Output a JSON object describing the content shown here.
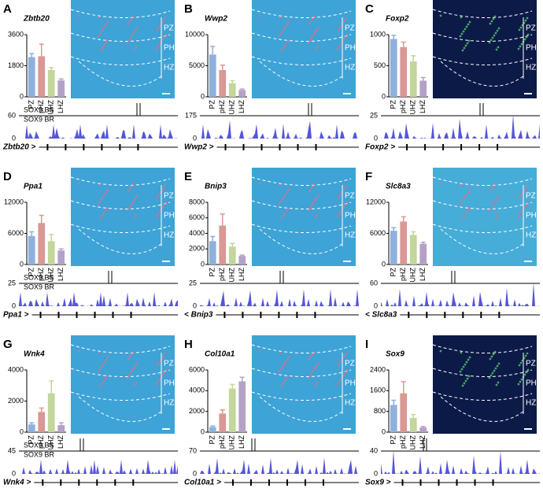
{
  "chart_data": [
    {
      "type": "bar",
      "letter": "A",
      "title": "Zbtb20",
      "categories": [
        "PZ",
        "pHZ",
        "UHZ",
        "LHZ"
      ],
      "values": [
        2300,
        2350,
        1550,
        950
      ],
      "error": [
        200,
        700,
        150,
        80
      ],
      "colors": [
        "#8fb0dc",
        "#d99894",
        "#c3d69b",
        "#b3a2c7"
      ],
      "ylim": [
        0,
        3600
      ],
      "yticks": [
        0,
        1800,
        3600
      ],
      "zones": [
        "PZ",
        "PHZ",
        "HZ"
      ],
      "image_color": "#3ea3d6",
      "bs_label": "SOX9 BS",
      "br_label": "SOX9 BR",
      "track_ylim": [
        0,
        60
      ],
      "gene_label": "Zbtb20 >"
    },
    {
      "type": "bar",
      "letter": "B",
      "title": "Wwp2",
      "categories": [
        "PZ",
        "pHZ",
        "UHZ",
        "LHZ"
      ],
      "values": [
        6800,
        4300,
        2200,
        1100
      ],
      "error": [
        1300,
        800,
        400,
        150
      ],
      "colors": [
        "#8fb0dc",
        "#d99894",
        "#c3d69b",
        "#b3a2c7"
      ],
      "ylim": [
        0,
        10000
      ],
      "yticks": [
        0,
        5000,
        10000
      ],
      "zones": [
        "PZ",
        "PHZ",
        "HZ"
      ],
      "image_color": "#3ea3d6",
      "track_ylim": [
        0,
        175
      ],
      "gene_label": "Wwp2 >"
    },
    {
      "type": "bar",
      "letter": "C",
      "title": "Foxp2",
      "categories": [
        "PZ",
        "pHZ",
        "UHZ",
        "LHZ"
      ],
      "values": [
        930,
        800,
        570,
        260
      ],
      "error": [
        60,
        80,
        90,
        50
      ],
      "colors": [
        "#8fb0dc",
        "#d99894",
        "#c3d69b",
        "#b3a2c7"
      ],
      "ylim": [
        0,
        1000
      ],
      "yticks": [
        0,
        500,
        1000
      ],
      "zones": [
        "PZ",
        "PHZ",
        "HZ"
      ],
      "image_color": "#0c1a48",
      "track_ylim": [
        0,
        25
      ],
      "gene_label": "Foxp2 >"
    },
    {
      "type": "bar",
      "letter": "D",
      "title": "Ppa1",
      "categories": [
        "PZ",
        "pHZ",
        "UHZ",
        "LHZ"
      ],
      "values": [
        5500,
        8000,
        4500,
        2700
      ],
      "error": [
        800,
        1500,
        1300,
        300
      ],
      "colors": [
        "#8fb0dc",
        "#d99894",
        "#c3d69b",
        "#b3a2c7"
      ],
      "ylim": [
        0,
        12000
      ],
      "yticks": [
        0,
        6000,
        12000
      ],
      "zones": [
        "PZ",
        "PHZ",
        "HZ"
      ],
      "image_color": "#3ea3d6",
      "bs_label": "SOX9 BS",
      "br_label": "SOX9 BR",
      "track_ylim": [
        0,
        25
      ],
      "gene_label": "Ppa1 >"
    },
    {
      "type": "bar",
      "letter": "E",
      "title": "Bnip3",
      "categories": [
        "PZ",
        "pHZ",
        "UHZ",
        "LHZ"
      ],
      "values": [
        3000,
        5000,
        2300,
        1100
      ],
      "error": [
        600,
        1500,
        400,
        100
      ],
      "colors": [
        "#8fb0dc",
        "#d99894",
        "#c3d69b",
        "#b3a2c7"
      ],
      "ylim": [
        0,
        8000
      ],
      "yticks": [
        0,
        2000,
        4000,
        6000,
        8000
      ],
      "zones": [
        "PZ",
        "PHZ",
        "HZ"
      ],
      "image_color": "#3ea3d6",
      "track_ylim": [
        0,
        25
      ],
      "gene_label": "< Bnip3"
    },
    {
      "type": "bar",
      "letter": "F",
      "title": "Slc8a3",
      "categories": [
        "PZ",
        "pHZ",
        "UHZ",
        "LHZ"
      ],
      "values": [
        6500,
        8300,
        5700,
        4000
      ],
      "error": [
        600,
        900,
        600,
        300
      ],
      "colors": [
        "#8fb0dc",
        "#d99894",
        "#c3d69b",
        "#b3a2c7"
      ],
      "ylim": [
        0,
        12000
      ],
      "yticks": [
        0,
        6000,
        12000
      ],
      "zones": [
        "PZ",
        "PHZ",
        "HZ"
      ],
      "image_color": "#46acd8",
      "track_ylim": [
        0,
        60
      ],
      "gene_label": "< Slc8a3"
    },
    {
      "type": "bar",
      "letter": "G",
      "title": "Wnk4",
      "categories": [
        "PZ",
        "pHZ",
        "UHZ",
        "LHZ"
      ],
      "values": [
        500,
        1300,
        2500,
        450
      ],
      "error": [
        100,
        250,
        800,
        150
      ],
      "colors": [
        "#8fb0dc",
        "#d99894",
        "#c3d69b",
        "#b3a2c7"
      ],
      "ylim": [
        0,
        4000
      ],
      "yticks": [
        0,
        2000,
        4000
      ],
      "zones": [
        "PZ",
        "PHZ",
        "HZ"
      ],
      "image_color": "#3ea3d6",
      "bs_label": "SOX9 BS",
      "br_label": "SOX9 BR",
      "track_ylim": [
        0,
        45
      ],
      "gene_label": "Wnk4 >"
    },
    {
      "type": "bar",
      "letter": "H",
      "title": "Col10a1",
      "categories": [
        "PZ",
        "pHZ",
        "UHZ",
        "LHZ"
      ],
      "values": [
        500,
        1800,
        4200,
        4900
      ],
      "error": [
        100,
        350,
        400,
        400
      ],
      "colors": [
        "#8fb0dc",
        "#d99894",
        "#c3d69b",
        "#b3a2c7"
      ],
      "ylim": [
        0,
        6000
      ],
      "yticks": [
        0,
        2000,
        4000,
        6000
      ],
      "zones": [
        "PZ",
        "PHZ",
        "HZ"
      ],
      "image_color": "#3ea3d6",
      "track_ylim": [
        0,
        70
      ],
      "gene_label": "Col10a1 >"
    },
    {
      "type": "bar",
      "letter": "I",
      "title": "Sox9",
      "categories": [
        "PZ",
        "pHZ",
        "UHZ",
        "LHZ"
      ],
      "values": [
        1050,
        1500,
        550,
        180
      ],
      "error": [
        180,
        450,
        130,
        40
      ],
      "colors": [
        "#8fb0dc",
        "#d99894",
        "#c3d69b",
        "#b3a2c7"
      ],
      "ylim": [
        0,
        2400
      ],
      "yticks": [
        0,
        800,
        1600,
        2400
      ],
      "zones": [
        "PZ",
        "PHZ",
        "HZ"
      ],
      "image_color": "#0c1a48",
      "track_ylim": [
        0,
        40
      ],
      "gene_label": "Sox9 >"
    }
  ]
}
